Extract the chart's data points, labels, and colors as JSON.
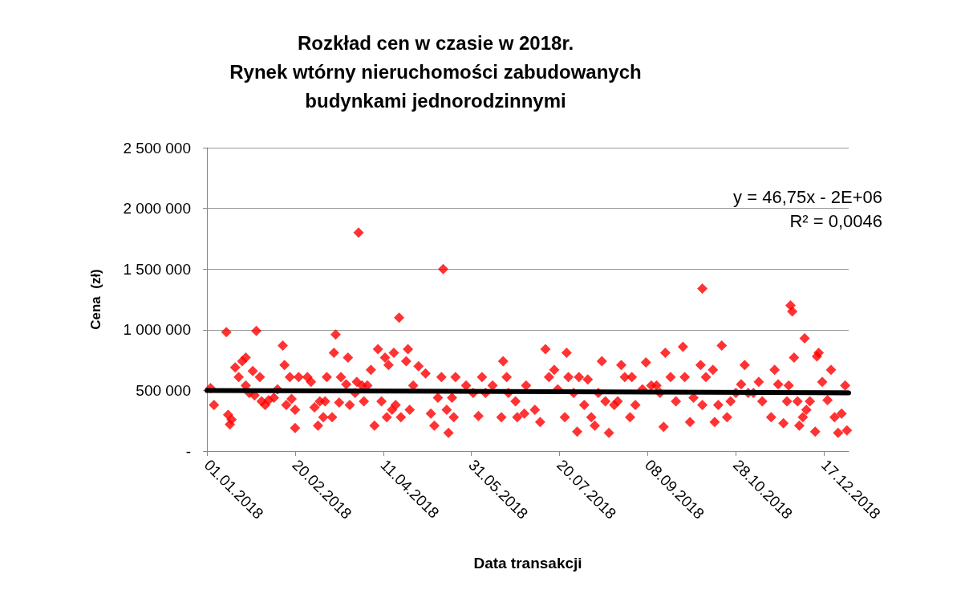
{
  "chart_data": {
    "type": "scatter",
    "title": "Rozkład cen w czasie w 2018r.\nRynek wtórny nieruchomości zabudowanych\nbudynkami jednorodzinnymi",
    "xlabel": "Data transakcji",
    "ylabel": "Cena  (zł)",
    "annotations": [
      "y = 46,75x - 2E+06",
      "R² = 0,0046"
    ],
    "xlim": [
      "2018-01-01",
      "2018-12-31"
    ],
    "xticks": [
      {
        "value": "2018-01-01",
        "label": "01.01.2018"
      },
      {
        "value": "2018-02-20",
        "label": "20.02.2018"
      },
      {
        "value": "2018-04-11",
        "label": "11.04.2018"
      },
      {
        "value": "2018-05-31",
        "label": "31.05.2018"
      },
      {
        "value": "2018-07-20",
        "label": "20.07.2018"
      },
      {
        "value": "2018-09-08",
        "label": "08.09.2018"
      },
      {
        "value": "2018-10-28",
        "label": "28.10.2018"
      },
      {
        "value": "2018-12-17",
        "label": "17.12.2018"
      }
    ],
    "ylim": [
      0,
      2500000
    ],
    "yticks": [
      {
        "value": 0,
        "label": "-"
      },
      {
        "value": 500000,
        "label": "500 000"
      },
      {
        "value": 1000000,
        "label": "1 000 000"
      },
      {
        "value": 1500000,
        "label": "1 500 000"
      },
      {
        "value": 2000000,
        "label": "2 000 000"
      },
      {
        "value": 2500000,
        "label": "2 500 000"
      }
    ],
    "grid": "y",
    "series": [
      {
        "color": "#ff0000",
        "marker": "diamond",
        "x": [
          "2018-01-03",
          "2018-01-05",
          "2018-01-12",
          "2018-01-13",
          "2018-01-14",
          "2018-01-15",
          "2018-01-17",
          "2018-01-19",
          "2018-01-21",
          "2018-01-23",
          "2018-01-23",
          "2018-01-25",
          "2018-01-27",
          "2018-01-28",
          "2018-01-29",
          "2018-01-31",
          "2018-02-01",
          "2018-02-03",
          "2018-02-05",
          "2018-02-08",
          "2018-02-10",
          "2018-02-13",
          "2018-02-14",
          "2018-02-15",
          "2018-02-17",
          "2018-02-18",
          "2018-02-20",
          "2018-02-20",
          "2018-02-22",
          "2018-02-27",
          "2018-03-01",
          "2018-03-03",
          "2018-03-05",
          "2018-03-06",
          "2018-03-08",
          "2018-03-09",
          "2018-03-10",
          "2018-03-13",
          "2018-03-14",
          "2018-03-15",
          "2018-03-17",
          "2018-03-18",
          "2018-03-21",
          "2018-03-22",
          "2018-03-23",
          "2018-03-26",
          "2018-03-27",
          "2018-03-28",
          "2018-03-30",
          "2018-03-31",
          "2018-04-02",
          "2018-04-04",
          "2018-04-06",
          "2018-04-08",
          "2018-04-10",
          "2018-04-12",
          "2018-04-13",
          "2018-04-14",
          "2018-04-16",
          "2018-04-17",
          "2018-04-18",
          "2018-04-20",
          "2018-04-21",
          "2018-04-24",
          "2018-04-25",
          "2018-04-26",
          "2018-04-28",
          "2018-05-01",
          "2018-05-05",
          "2018-05-08",
          "2018-05-10",
          "2018-05-12",
          "2018-05-14",
          "2018-05-15",
          "2018-05-17",
          "2018-05-18",
          "2018-05-20",
          "2018-05-21",
          "2018-05-22",
          "2018-05-28",
          "2018-06-01",
          "2018-06-04",
          "2018-06-06",
          "2018-06-08",
          "2018-06-12",
          "2018-06-17",
          "2018-06-18",
          "2018-06-20",
          "2018-06-21",
          "2018-06-25",
          "2018-06-26",
          "2018-06-30",
          "2018-07-01",
          "2018-07-06",
          "2018-07-09",
          "2018-07-12",
          "2018-07-14",
          "2018-07-17",
          "2018-07-19",
          "2018-07-23",
          "2018-07-24",
          "2018-07-25",
          "2018-07-28",
          "2018-07-30",
          "2018-07-31",
          "2018-08-03",
          "2018-08-05",
          "2018-08-07",
          "2018-08-09",
          "2018-08-11",
          "2018-08-13",
          "2018-08-15",
          "2018-08-17",
          "2018-08-20",
          "2018-08-22",
          "2018-08-24",
          "2018-08-26",
          "2018-08-29",
          "2018-08-30",
          "2018-09-01",
          "2018-09-05",
          "2018-09-07",
          "2018-09-10",
          "2018-09-13",
          "2018-09-15",
          "2018-09-17",
          "2018-09-18",
          "2018-09-21",
          "2018-09-24",
          "2018-09-28",
          "2018-09-29",
          "2018-10-02",
          "2018-10-04",
          "2018-10-08",
          "2018-10-09",
          "2018-10-09",
          "2018-10-11",
          "2018-10-15",
          "2018-10-16",
          "2018-10-18",
          "2018-10-20",
          "2018-10-23",
          "2018-10-25",
          "2018-10-28",
          "2018-10-31",
          "2018-11-02",
          "2018-11-04",
          "2018-11-07",
          "2018-11-10",
          "2018-11-12",
          "2018-11-17",
          "2018-11-19",
          "2018-11-21",
          "2018-11-24",
          "2018-11-26",
          "2018-11-27",
          "2018-11-28",
          "2018-11-29",
          "2018-11-30",
          "2018-12-02",
          "2018-12-03",
          "2018-12-05",
          "2018-12-06",
          "2018-12-07",
          "2018-12-09",
          "2018-12-12",
          "2018-12-13",
          "2018-12-14",
          "2018-12-16",
          "2018-12-19",
          "2018-12-21",
          "2018-12-23",
          "2018-12-25",
          "2018-12-27",
          "2018-12-29",
          "2018-12-30"
        ],
        "values": [
          520000,
          380000,
          980000,
          300000,
          220000,
          260000,
          690000,
          610000,
          740000,
          540000,
          770000,
          480000,
          660000,
          460000,
          990000,
          610000,
          410000,
          380000,
          420000,
          440000,
          510000,
          870000,
          710000,
          380000,
          610000,
          430000,
          190000,
          340000,
          610000,
          610000,
          570000,
          360000,
          210000,
          410000,
          280000,
          410000,
          610000,
          280000,
          810000,
          960000,
          400000,
          610000,
          550000,
          770000,
          380000,
          480000,
          570000,
          1800000,
          540000,
          410000,
          540000,
          670000,
          210000,
          840000,
          410000,
          770000,
          280000,
          710000,
          340000,
          810000,
          380000,
          1100000,
          280000,
          740000,
          840000,
          340000,
          540000,
          700000,
          640000,
          310000,
          210000,
          440000,
          610000,
          1500000,
          340000,
          150000,
          440000,
          280000,
          610000,
          540000,
          480000,
          290000,
          610000,
          480000,
          540000,
          280000,
          740000,
          610000,
          480000,
          410000,
          280000,
          310000,
          540000,
          340000,
          240000,
          840000,
          610000,
          670000,
          510000,
          280000,
          810000,
          610000,
          480000,
          160000,
          610000,
          380000,
          590000,
          280000,
          210000,
          480000,
          740000,
          410000,
          150000,
          380000,
          410000,
          710000,
          610000,
          280000,
          610000,
          380000,
          510000,
          730000,
          540000,
          540000,
          480000,
          200000,
          810000,
          610000,
          410000,
          860000,
          610000,
          240000,
          440000,
          710000,
          1340000,
          380000,
          610000,
          670000,
          240000,
          380000,
          870000,
          280000,
          410000,
          480000,
          550000,
          710000,
          480000,
          480000,
          570000,
          410000,
          280000,
          670000,
          550000,
          230000,
          410000,
          540000,
          1200000,
          1150000,
          770000,
          410000,
          210000,
          280000,
          930000,
          340000,
          410000,
          160000,
          780000,
          810000,
          570000,
          420000,
          670000,
          280000,
          150000,
          310000,
          540000,
          170000
        ]
      },
      {
        "type": "line",
        "marker": "none",
        "color": "#000000",
        "x": [
          "2018-01-01",
          "2018-12-31"
        ],
        "values": [
          500000,
          480000
        ]
      }
    ]
  }
}
